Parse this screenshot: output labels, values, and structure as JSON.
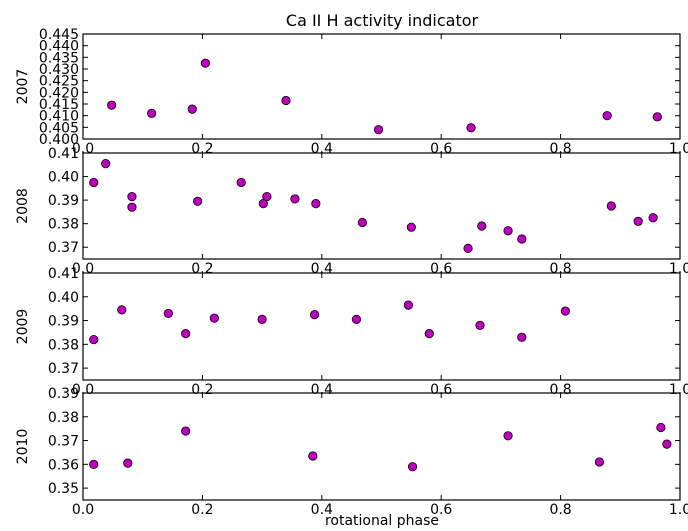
{
  "chart_data": {
    "type": "scatter",
    "title": "Ca II H activity indicator",
    "xlabel": "rotational phase",
    "marker_color": "#bf00bf",
    "xlim": [
      0.0,
      1.0
    ],
    "xticks": [
      "0.0",
      "0.2",
      "0.4",
      "0.6",
      "0.8",
      "1.0"
    ],
    "panels": [
      {
        "ylabel": "2007",
        "ylim": [
          0.4,
          0.445
        ],
        "yticks": [
          0.4,
          0.405,
          0.41,
          0.415,
          0.42,
          0.425,
          0.43,
          0.435,
          0.44,
          0.445
        ],
        "yticklabels": [
          "0.400",
          "0.405",
          "0.410",
          "0.415",
          "0.420",
          "0.425",
          "0.430",
          "0.435",
          "0.440",
          "0.445"
        ],
        "x": [
          0.048,
          0.115,
          0.183,
          0.205,
          0.34,
          0.495,
          0.65,
          0.878,
          0.962
        ],
        "y": [
          0.4145,
          0.411,
          0.4128,
          0.4325,
          0.4165,
          0.404,
          0.4048,
          0.41,
          0.4095
        ]
      },
      {
        "ylabel": "2008",
        "ylim": [
          0.365,
          0.41
        ],
        "yticks": [
          0.37,
          0.38,
          0.39,
          0.4,
          0.41
        ],
        "yticklabels": [
          "0.37",
          "0.38",
          "0.39",
          "0.40",
          "0.41"
        ],
        "x": [
          0.018,
          0.038,
          0.082,
          0.082,
          0.192,
          0.265,
          0.302,
          0.308,
          0.355,
          0.39,
          0.468,
          0.55,
          0.645,
          0.668,
          0.712,
          0.735,
          0.885,
          0.93,
          0.955
        ],
        "y": [
          0.3975,
          0.4055,
          0.3915,
          0.387,
          0.3895,
          0.3975,
          0.3885,
          0.3915,
          0.3905,
          0.3885,
          0.3805,
          0.3785,
          0.3695,
          0.379,
          0.377,
          0.3735,
          0.3875,
          0.381,
          0.3825
        ]
      },
      {
        "ylabel": "2009",
        "ylim": [
          0.365,
          0.41
        ],
        "yticks": [
          0.37,
          0.38,
          0.39,
          0.4,
          0.41
        ],
        "yticklabels": [
          "0.37",
          "0.38",
          "0.39",
          "0.40",
          "0.41"
        ],
        "x": [
          0.018,
          0.065,
          0.143,
          0.172,
          0.22,
          0.3,
          0.388,
          0.458,
          0.545,
          0.58,
          0.665,
          0.735,
          0.808
        ],
        "y": [
          0.382,
          0.3945,
          0.393,
          0.3845,
          0.391,
          0.3905,
          0.3925,
          0.3905,
          0.3965,
          0.3845,
          0.388,
          0.383,
          0.394
        ]
      },
      {
        "ylabel": "2010",
        "ylim": [
          0.345,
          0.39
        ],
        "yticks": [
          0.35,
          0.36,
          0.37,
          0.38,
          0.39
        ],
        "yticklabels": [
          "0.35",
          "0.36",
          "0.37",
          "0.38",
          "0.39"
        ],
        "x": [
          0.018,
          0.075,
          0.172,
          0.385,
          0.552,
          0.712,
          0.865,
          0.968,
          0.978
        ],
        "y": [
          0.36,
          0.3605,
          0.374,
          0.3635,
          0.359,
          0.372,
          0.361,
          0.3755,
          0.3685
        ]
      }
    ]
  }
}
